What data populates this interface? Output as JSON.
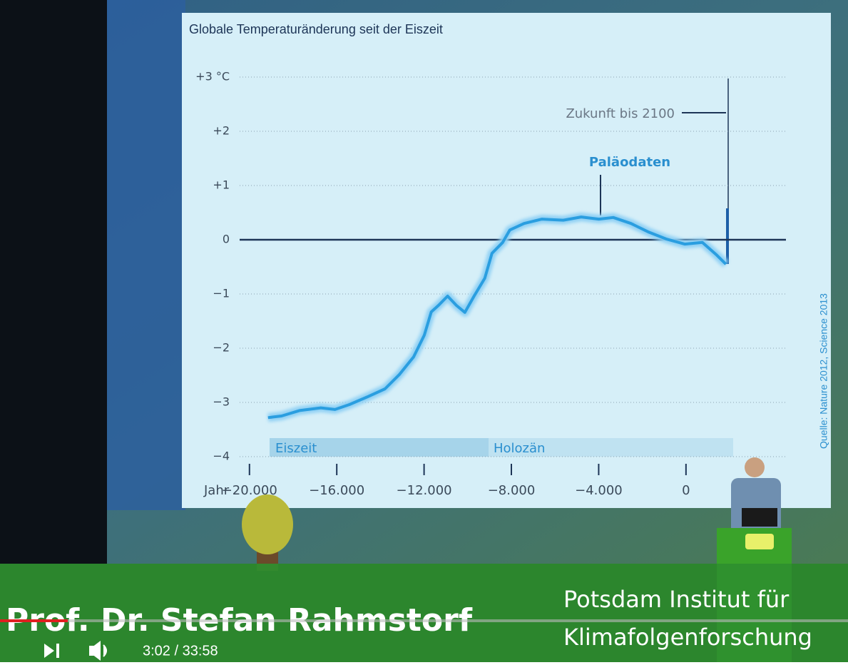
{
  "chart_data": {
    "type": "line",
    "title": "Globale Temperaturänderung seit der Eiszeit",
    "annotations": {
      "future": "Zukunft bis 2100",
      "paleo": "Paläodaten",
      "glacial": "Eiszeit",
      "holocene": "Holozän",
      "x_label": "Jahr",
      "source": "Quelle: Nature 2012, Science 2013"
    },
    "x": [
      -19150,
      -18530,
      -17710,
      -16730,
      -16080,
      -15420,
      -14610,
      -13790,
      -13140,
      -12480,
      -11990,
      -11670,
      -11340,
      -10920,
      -10520,
      -10130,
      -9710,
      -9220,
      -8890,
      -8400,
      -8070,
      -7420,
      -6600,
      -5620,
      -4800,
      -3990,
      -3330,
      -2520,
      -1700,
      -880,
      -60,
      750,
      1400,
      1830
    ],
    "series": [
      {
        "color": "#2a9ee0",
        "values": [
          -3.28,
          -3.25,
          -3.15,
          -3.1,
          -3.13,
          -3.04,
          -2.9,
          -2.75,
          -2.49,
          -2.16,
          -1.76,
          -1.33,
          -1.21,
          -1.04,
          -1.21,
          -1.34,
          -1.04,
          -0.71,
          -0.25,
          -0.05,
          0.18,
          0.3,
          0.38,
          0.36,
          0.42,
          0.38,
          0.41,
          0.3,
          0.14,
          0.01,
          -0.08,
          -0.05,
          -0.28,
          -0.45
        ]
      }
    ],
    "xlim": [
      -20450,
      4580
    ],
    "xticks": [
      {
        "value": -20000,
        "label": "−20.000"
      },
      {
        "value": -16000,
        "label": "−16.000"
      },
      {
        "value": -12000,
        "label": "−12.000"
      },
      {
        "value": -8000,
        "label": "−8.000"
      },
      {
        "value": -4000,
        "label": "−4.000"
      },
      0
    ],
    "ylim": [
      -4,
      3
    ],
    "yticks": [
      {
        "value": -4,
        "label": "−4"
      },
      {
        "value": -3,
        "label": "−3"
      },
      {
        "value": -2,
        "label": "−2"
      },
      {
        "value": -1,
        "label": "−1"
      },
      0,
      {
        "value": 1,
        "label": "+1"
      },
      {
        "value": 2,
        "label": "+2"
      },
      {
        "value": 3,
        "label": "+3 °C"
      }
    ],
    "grid": true
  },
  "video": {
    "speaker": "Prof. Dr. Stefan Rahmstorf",
    "organization": [
      "Potsdam Institut für",
      "Klimafolgenforschung"
    ],
    "time": "3:02 / 33:58"
  }
}
